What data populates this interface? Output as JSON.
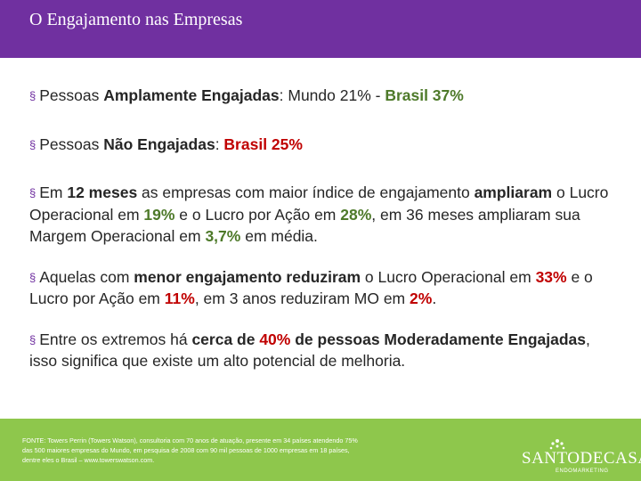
{
  "header": {
    "title": "O Engajamento nas Empresas"
  },
  "bullets": [
    {
      "parts": [
        "Pessoas ",
        "Amplamente Engajadas",
        ": Mundo 21% - ",
        "Brasil 37%"
      ]
    },
    {
      "parts": [
        "Pessoas ",
        "Não Engajadas",
        ": ",
        "Brasil 25%"
      ]
    },
    {
      "parts": [
        "Em ",
        "12 meses",
        " as empresas com maior índice de engajamento ",
        "ampliaram",
        " o Lucro Operacional em ",
        "19%",
        " e o Lucro por Ação em ",
        "28%",
        ", em 36 meses ampliaram sua Margem Operacional em ",
        "3,7%",
        " em média."
      ]
    },
    {
      "parts": [
        "Aquelas com ",
        "menor engajamento reduziram",
        " o Lucro Operacional em ",
        "33%",
        " e o Lucro por Ação em ",
        "11%",
        ", em 3 anos reduziram MO em ",
        "2%",
        "."
      ]
    },
    {
      "parts": [
        "Entre os extremos há ",
        "cerca de ",
        "40%",
        " de pessoas Moderadamente Engajadas",
        ", isso significa que existe um alto potencial de melhoria."
      ]
    }
  ],
  "footer": {
    "source": "FONTE: Towers Perrin (Towers Watson), consultoria com 70 anos de atuação, presente em 34 países atendendo 75% das 500 maiores empresas do Mundo, em pesquisa de 2008 com 90 mil pessoas de 1000 empresas em 18 países, dentre eles o Brasil – www.towerswatson.com.",
    "logo_text": "SANTODECASA",
    "logo_sub": "ENDOMARKETING"
  },
  "colors": {
    "header_bg": "#7030a0",
    "footer_bg": "#8ec74c",
    "accent_green": "#4e7a2a",
    "accent_red": "#c00000"
  }
}
